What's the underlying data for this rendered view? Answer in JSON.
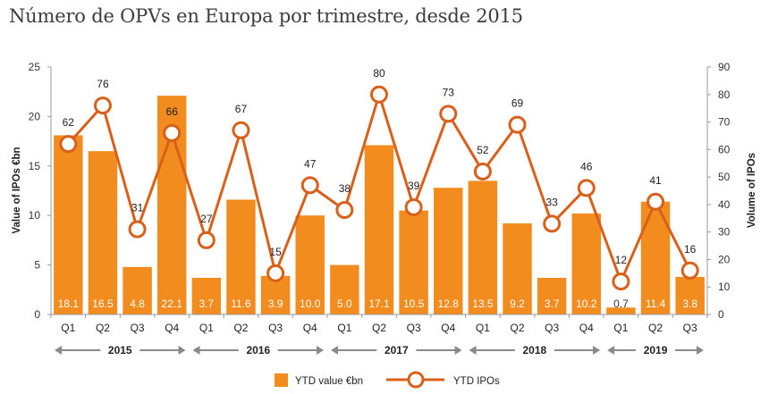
{
  "title": "Número de OPVs en Europa por trimestre, desde 2015",
  "colors": {
    "bar": "#f28c1e",
    "line": "#d9601a",
    "axis": "#9a9a9a",
    "year_arrow": "#8a8a8a"
  },
  "chart_data": {
    "type": "bar+line",
    "title": "Número de OPVs en Europa por trimestre, desde 2015",
    "categories": [
      "Q1",
      "Q2",
      "Q3",
      "Q4",
      "Q1",
      "Q2",
      "Q3",
      "Q4",
      "Q1",
      "Q2",
      "Q3",
      "Q4",
      "Q1",
      "Q2",
      "Q3",
      "Q4",
      "Q1",
      "Q2",
      "Q3"
    ],
    "groups": [
      {
        "label": "2015",
        "count": 4
      },
      {
        "label": "2016",
        "count": 4
      },
      {
        "label": "2017",
        "count": 4
      },
      {
        "label": "2018",
        "count": 4
      },
      {
        "label": "2019",
        "count": 3
      }
    ],
    "series": [
      {
        "name": "YTD value €bn",
        "type": "bar",
        "axis": "left",
        "values": [
          18.1,
          16.5,
          4.8,
          22.1,
          3.7,
          11.6,
          3.9,
          10.0,
          5.0,
          17.1,
          10.5,
          12.8,
          13.5,
          9.2,
          3.7,
          10.2,
          0.7,
          11.4,
          3.8
        ],
        "labels": [
          "18.1",
          "16.5",
          "4.8",
          "22.1",
          "3.7",
          "11.6",
          "3.9",
          "10.0",
          "5.0",
          "17.1",
          "10.5",
          "12.8",
          "13.5",
          "9.2",
          "3.7",
          "10.2",
          "0.7",
          "11.4",
          "3.8"
        ]
      },
      {
        "name": "YTD IPOs",
        "type": "line",
        "axis": "right",
        "values": [
          62,
          76,
          31,
          66,
          27,
          67,
          15,
          47,
          38,
          80,
          39,
          73,
          52,
          69,
          33,
          46,
          12,
          41,
          16
        ]
      }
    ],
    "ylabel": "Value of IPOs €bn",
    "ylim": [
      0,
      25
    ],
    "yticks": [
      "0",
      "5",
      "10",
      "15",
      "20",
      "25"
    ],
    "y2label": "Volume of IPOs",
    "y2lim": [
      0,
      90
    ],
    "y2ticks": [
      "0",
      "10",
      "20",
      "30",
      "40",
      "50",
      "60",
      "70",
      "80",
      "90"
    ],
    "grid": false,
    "legend": {
      "position": "bottom-center",
      "items": [
        "YTD value €bn",
        "YTD IPOs"
      ]
    }
  }
}
